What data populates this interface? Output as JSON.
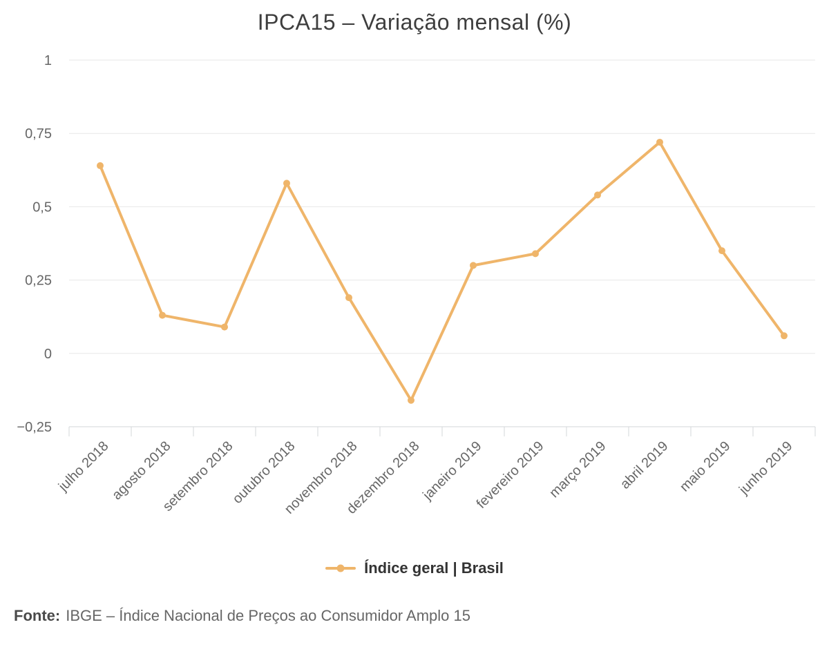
{
  "title": "IPCA15 – Variação mensal (%)",
  "legend": {
    "label": "Índice geral | Brasil"
  },
  "footer": {
    "prefix": "Fonte:",
    "text": "IBGE – Índice Nacional de Preços ao Consumidor Amplo 15"
  },
  "colors": {
    "series": "#EFB56A",
    "grid": "#E7E7E7",
    "axis": "#D3D7DA",
    "title_text": "#3E3E3E",
    "axis_text": "#666666",
    "legend_text": "#333333",
    "footer_text": "#666666"
  },
  "chart_data": {
    "type": "line",
    "title": "IPCA15 – Variação mensal (%)",
    "categories": [
      "julho 2018",
      "agosto 2018",
      "setembro 2018",
      "outubro 2018",
      "novembro 2018",
      "dezembro 2018",
      "janeiro 2019",
      "fevereiro 2019",
      "março 2019",
      "abril 2019",
      "maio 2019",
      "junho 2019"
    ],
    "series": [
      {
        "name": "Índice geral | Brasil",
        "values": [
          0.64,
          0.13,
          0.09,
          0.58,
          0.19,
          -0.16,
          0.3,
          0.34,
          0.54,
          0.72,
          0.35,
          0.06
        ]
      }
    ],
    "xlabel": "",
    "ylabel": "",
    "ylim": [
      -0.25,
      1
    ],
    "yticks": [
      -0.25,
      0,
      0.25,
      0.5,
      0.75,
      1
    ],
    "ytick_labels": [
      "−0,25",
      "0",
      "0,25",
      "0,5",
      "0,75",
      "1"
    ],
    "grid": true,
    "legend_position": "bottom"
  }
}
